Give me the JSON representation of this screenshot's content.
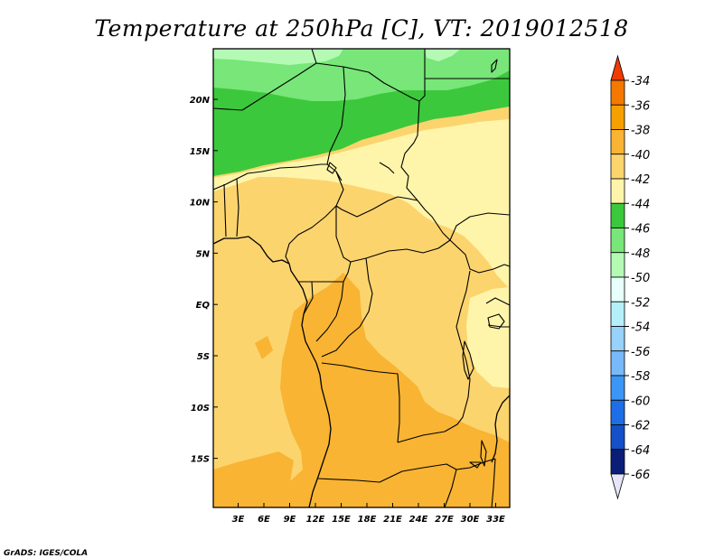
{
  "title": "Temperature at 250hPa [C], VT: 2019012518",
  "credit": "GrADS: IGES/COLA",
  "map": {
    "variable": "Temperature",
    "level": "250hPa",
    "units": "C",
    "valid_time": "2019012518",
    "lon_labels": [
      "3E",
      "6E",
      "9E",
      "12E",
      "15E",
      "18E",
      "21E",
      "24E",
      "27E",
      "30E",
      "33E"
    ],
    "lat_labels": [
      "20N",
      "15N",
      "10N",
      "5N",
      "EQ",
      "5S",
      "10S",
      "15S"
    ]
  },
  "colorbar": {
    "labels": [
      "-34",
      "-36",
      "-38",
      "-40",
      "-42",
      "-44",
      "-46",
      "-48",
      "-50",
      "-52",
      "-54",
      "-56",
      "-58",
      "-60",
      "-62",
      "-64",
      "-66"
    ],
    "colors_top_to_bottom": [
      "#f03c00",
      "#f57800",
      "#f5a000",
      "#f8b432",
      "#fcd46e",
      "#fff5aa",
      "#3cc83c",
      "#78e678",
      "#b4fab4",
      "#e6fffa",
      "#b4f0fa",
      "#96d2fa",
      "#78b9fa",
      "#3c96f5",
      "#1e6ee6",
      "#1450c8",
      "#0a1e78",
      "#e6e6fa"
    ]
  },
  "colors": {
    "band_m38": "#f8b432",
    "band_m40": "#fcd46e",
    "band_m42": "#fff5aa",
    "band_m44": "#3cc83c",
    "band_m46": "#78e678",
    "band_m48": "#b4fab4"
  }
}
